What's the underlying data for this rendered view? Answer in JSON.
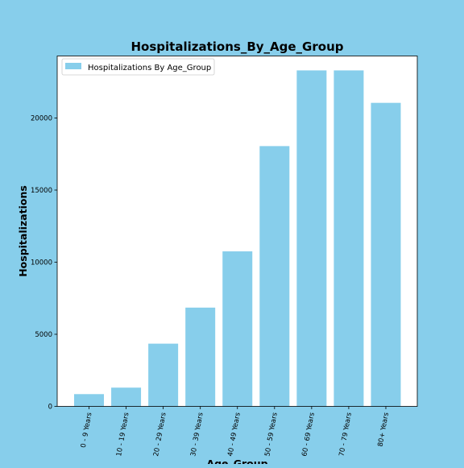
{
  "chart_data": {
    "type": "bar",
    "title": "Hospitalizations_By_Age_Group",
    "xlabel": "Age_Group",
    "ylabel": "Hospitalizations",
    "categories": [
      "0 - 9 Years",
      "10 - 19 Years",
      "20 - 29 Years",
      "30 - 39 Years",
      "40 - 49 Years",
      "50 - 59 Years",
      "60 - 69 Years",
      "70 - 79 Years",
      "80+ Years"
    ],
    "series": [
      {
        "name": "Hospitalizations By Age_Group",
        "values": [
          850,
          1300,
          4350,
          6850,
          10750,
          18050,
          23300,
          23300,
          21050
        ],
        "color": "#87ceeb"
      }
    ],
    "ylim": [
      0,
      24300
    ],
    "yticks": [
      0,
      5000,
      10000,
      15000,
      20000
    ],
    "ytick_labels": [
      "0",
      "5000",
      "10000",
      "15000",
      "20000"
    ],
    "grid": false,
    "legend_position": "top-left",
    "background_color": "#87ceeb",
    "plot_background_color": "#ffffff"
  }
}
